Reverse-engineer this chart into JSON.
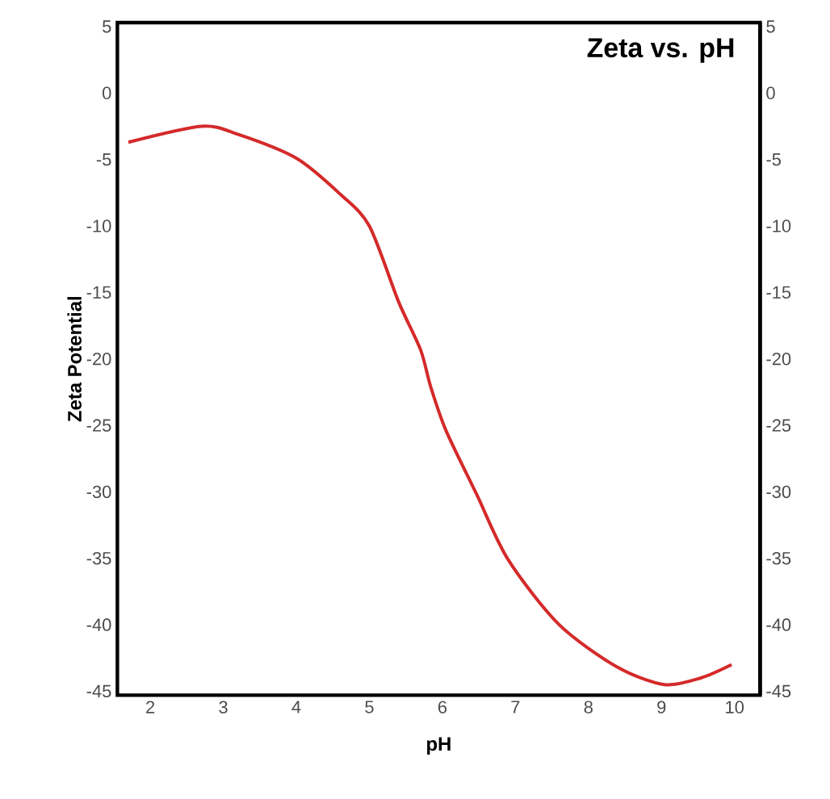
{
  "chart_data": {
    "type": "line",
    "title": "Zeta vs. pH",
    "xlabel": "pH",
    "ylabel": "Zeta Potential",
    "x": [
      1.7,
      2.7,
      3.2,
      4.0,
      4.6,
      5.0,
      5.4,
      5.7,
      5.84,
      6.05,
      6.47,
      6.9,
      7.6,
      8.4,
      9.04,
      9.54,
      9.96
    ],
    "series": [
      {
        "color": "#d42a2a",
        "values": [
          -3.7,
          -2.5,
          -3.1,
          -4.9,
          -7.6,
          -10.0,
          -15.7,
          -19.3,
          -22.1,
          -25.4,
          -30.2,
          -35.1,
          -40.0,
          -43.2,
          -44.5,
          -44.0,
          -43.0
        ]
      }
    ],
    "xlim": [
      1.55,
      10.35
    ],
    "ylim": [
      -45.3,
      5.3
    ],
    "y2lim": [
      -45.3,
      5.3
    ],
    "xticks": [
      2,
      3,
      4,
      5,
      6,
      7,
      8,
      9,
      10
    ],
    "yticks": [
      5,
      0,
      -5,
      -10,
      -15,
      -20,
      -25,
      -30,
      -35,
      -40,
      -45
    ],
    "y2ticks": [
      5,
      0,
      -5,
      -10,
      -15,
      -20,
      -25,
      -30,
      -35,
      -40,
      -45
    ],
    "grid": false,
    "marker": "none",
    "line_style": "solid"
  }
}
